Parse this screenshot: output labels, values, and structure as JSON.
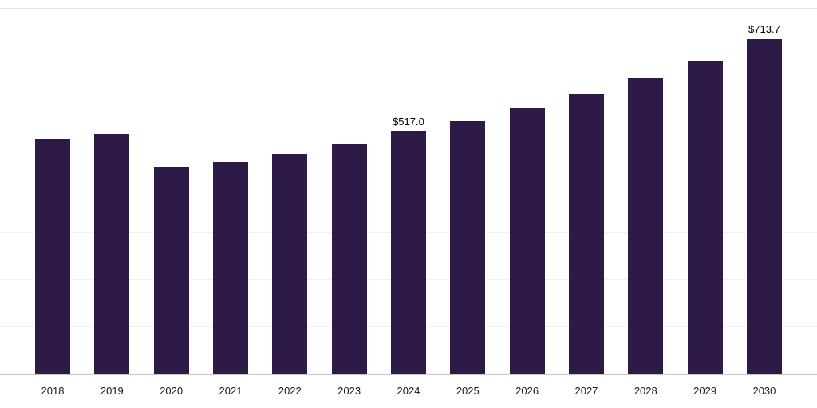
{
  "chart_data": {
    "type": "bar",
    "categories": [
      "2018",
      "2019",
      "2020",
      "2021",
      "2022",
      "2023",
      "2024",
      "2025",
      "2026",
      "2027",
      "2028",
      "2029",
      "2030"
    ],
    "values": [
      502,
      512,
      440,
      452,
      469,
      490,
      517.0,
      539,
      566,
      597,
      630,
      668,
      713.7
    ],
    "labels": [
      "",
      "",
      "",
      "",
      "",
      "",
      "$517.0",
      "",
      "",
      "",
      "",
      "",
      "$713.7"
    ],
    "title": "",
    "xlabel": "",
    "ylabel": "",
    "ylim": [
      0,
      780
    ],
    "gridline_step": 100,
    "grid": "horizontal",
    "legend": "none",
    "bar_color": "#2E1A47",
    "axis_line_color": "#c9c9c9",
    "gridline_color": "#f0f0f0"
  }
}
